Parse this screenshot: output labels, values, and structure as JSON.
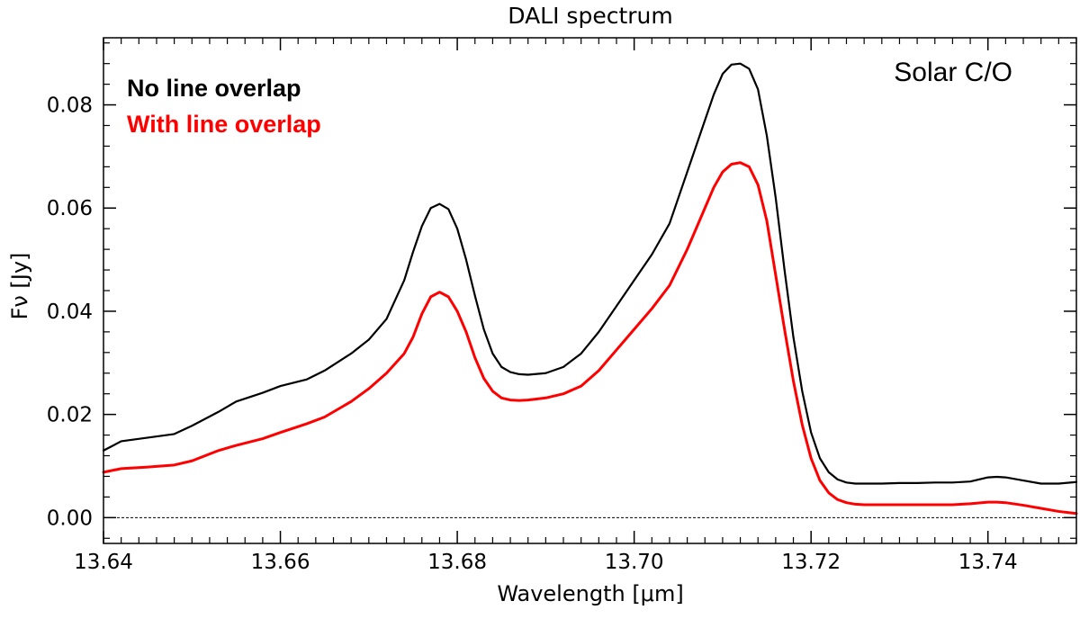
{
  "chart_data": {
    "type": "line",
    "title": "DALI spectrum",
    "xlabel": "Wavelength [μm]",
    "ylabel": "Fν [Jy]",
    "xlim": [
      13.64,
      13.75
    ],
    "ylim": [
      -0.005,
      0.093
    ],
    "xticks": [
      13.64,
      13.66,
      13.68,
      13.7,
      13.72,
      13.74
    ],
    "xtick_labels": [
      "13.64",
      "13.66",
      "13.68",
      "13.70",
      "13.72",
      "13.74"
    ],
    "yticks": [
      0.0,
      0.02,
      0.04,
      0.06,
      0.08
    ],
    "ytick_labels": [
      "0.00",
      "0.02",
      "0.04",
      "0.06",
      "0.08"
    ],
    "grid": false,
    "legend_position": "top-left",
    "annotation": "Solar C/O",
    "reference_line": {
      "y": 0.0,
      "style": "dashed"
    },
    "x": [
      13.64,
      13.642,
      13.645,
      13.648,
      13.65,
      13.653,
      13.655,
      13.658,
      13.66,
      13.663,
      13.665,
      13.668,
      13.67,
      13.672,
      13.674,
      13.675,
      13.676,
      13.677,
      13.678,
      13.679,
      13.68,
      13.681,
      13.682,
      13.683,
      13.684,
      13.685,
      13.686,
      13.687,
      13.688,
      13.69,
      13.692,
      13.694,
      13.696,
      13.698,
      13.7,
      13.702,
      13.704,
      13.706,
      13.708,
      13.709,
      13.71,
      13.711,
      13.712,
      13.713,
      13.714,
      13.715,
      13.716,
      13.717,
      13.718,
      13.719,
      13.72,
      13.721,
      13.722,
      13.723,
      13.724,
      13.725,
      13.726,
      13.728,
      13.73,
      13.732,
      13.734,
      13.736,
      13.738,
      13.74,
      13.741,
      13.742,
      13.744,
      13.746,
      13.748,
      13.75
    ],
    "series": [
      {
        "name": "No line overlap",
        "color": "#000000",
        "values": [
          0.013,
          0.0148,
          0.0155,
          0.0162,
          0.0178,
          0.0205,
          0.0225,
          0.0242,
          0.0255,
          0.0268,
          0.0285,
          0.0318,
          0.0345,
          0.0385,
          0.046,
          0.0515,
          0.0565,
          0.06,
          0.0608,
          0.0598,
          0.056,
          0.05,
          0.043,
          0.0365,
          0.0318,
          0.0292,
          0.0282,
          0.0278,
          0.0277,
          0.028,
          0.0292,
          0.0318,
          0.036,
          0.041,
          0.046,
          0.051,
          0.057,
          0.067,
          0.077,
          0.082,
          0.086,
          0.0878,
          0.088,
          0.087,
          0.083,
          0.074,
          0.062,
          0.048,
          0.035,
          0.0245,
          0.0165,
          0.0115,
          0.0088,
          0.0074,
          0.0068,
          0.0066,
          0.0066,
          0.0066,
          0.0067,
          0.0067,
          0.0068,
          0.0068,
          0.007,
          0.0078,
          0.0079,
          0.0078,
          0.0072,
          0.0066,
          0.0066,
          0.0069
        ]
      },
      {
        "name": "With line overlap",
        "color": "#ff0000",
        "values": [
          0.0088,
          0.0095,
          0.0098,
          0.0102,
          0.011,
          0.013,
          0.014,
          0.0153,
          0.0165,
          0.0182,
          0.0195,
          0.0225,
          0.025,
          0.028,
          0.0318,
          0.035,
          0.0395,
          0.0428,
          0.0437,
          0.0428,
          0.04,
          0.036,
          0.031,
          0.027,
          0.0245,
          0.0232,
          0.0228,
          0.0227,
          0.0228,
          0.0232,
          0.024,
          0.0255,
          0.0285,
          0.0325,
          0.0365,
          0.0405,
          0.045,
          0.052,
          0.06,
          0.064,
          0.067,
          0.0685,
          0.0688,
          0.068,
          0.0645,
          0.0575,
          0.047,
          0.0365,
          0.0265,
          0.018,
          0.0115,
          0.0072,
          0.0048,
          0.0035,
          0.0029,
          0.0026,
          0.0025,
          0.0025,
          0.0025,
          0.0025,
          0.0025,
          0.0025,
          0.0027,
          0.003,
          0.003,
          0.0029,
          0.0024,
          0.0018,
          0.0012,
          0.0008
        ]
      }
    ]
  }
}
